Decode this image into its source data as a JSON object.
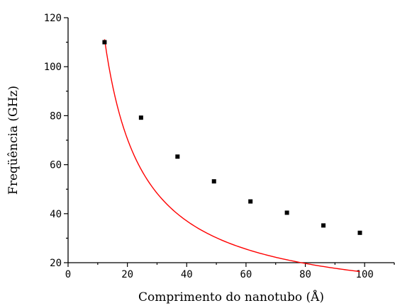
{
  "chart_data": {
    "type": "scatter",
    "xlabel": "Comprimento do nanotubo (Å)",
    "ylabel": "Freqüência (GHz)",
    "xlim": [
      0,
      110
    ],
    "ylim": [
      20,
      120
    ],
    "xticks": [
      0,
      20,
      40,
      60,
      80,
      100
    ],
    "yticks": [
      20,
      40,
      60,
      80,
      100,
      120
    ],
    "grid": false,
    "series": [
      {
        "marker": "square",
        "color": "#000000",
        "x": [
          12.3,
          24.6,
          36.9,
          49.2,
          61.5,
          73.8,
          86.1,
          98.4
        ],
        "y": [
          110,
          79.2,
          63.3,
          53.2,
          45.0,
          40.4,
          35.2,
          32.2
        ]
      }
    ],
    "fit": {
      "color": "#ff0000",
      "form": "power",
      "a": 1188,
      "b": -0.9475,
      "c": 1.0,
      "x_from": 12.3,
      "x_to": 98.4
    }
  }
}
